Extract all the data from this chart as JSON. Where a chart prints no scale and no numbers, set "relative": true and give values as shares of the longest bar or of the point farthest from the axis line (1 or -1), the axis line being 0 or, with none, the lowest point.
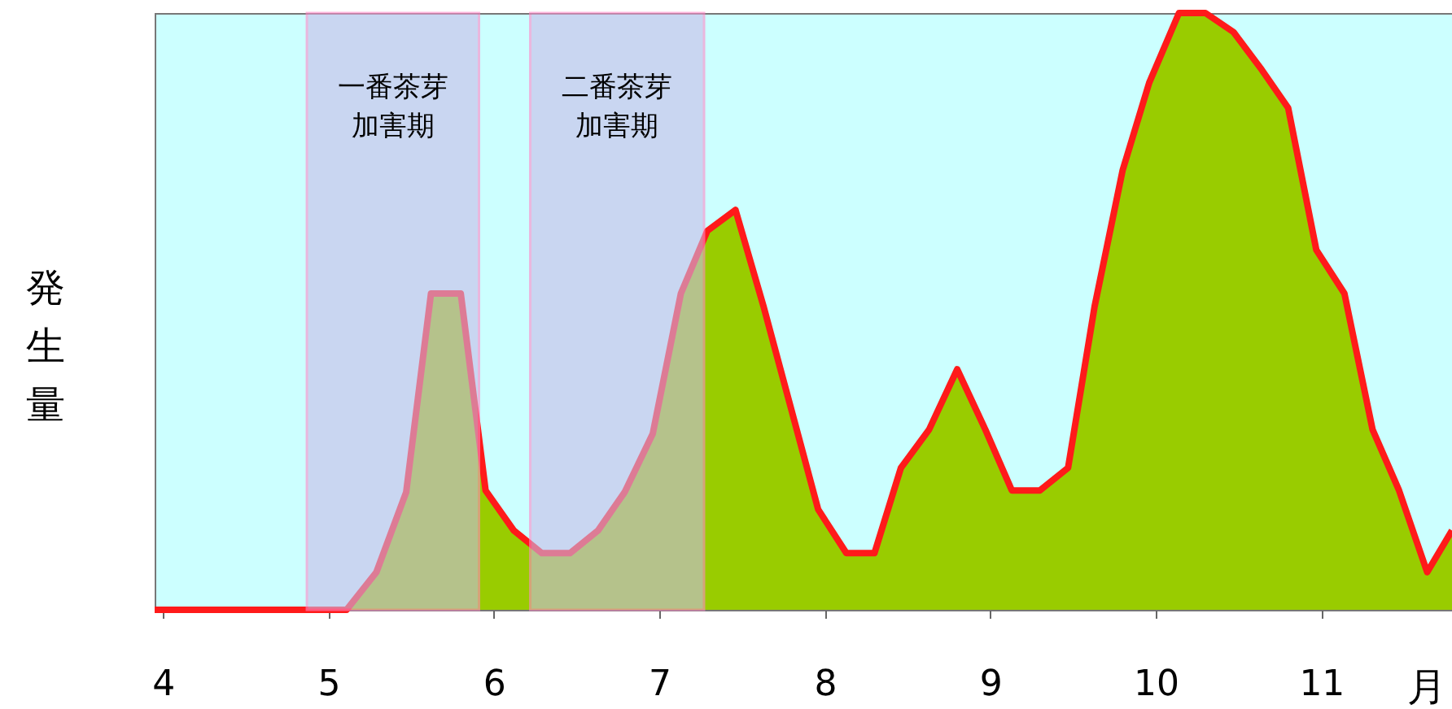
{
  "chart_data": {
    "type": "area",
    "relative": true,
    "xlabel": "月",
    "ylabel": "発生量",
    "xlim": [
      3.95,
      11.79
    ],
    "xticks": [
      4,
      5,
      6,
      7,
      8,
      9,
      10,
      11
    ],
    "x": [
      3.95,
      5.11,
      5.29,
      5.47,
      5.62,
      5.8,
      5.95,
      6.12,
      6.29,
      6.46,
      6.63,
      6.79,
      6.96,
      7.13,
      7.29,
      7.46,
      7.63,
      7.8,
      7.96,
      8.13,
      8.3,
      8.46,
      8.63,
      8.8,
      8.97,
      9.13,
      9.3,
      9.47,
      9.63,
      9.8,
      9.96,
      10.14,
      10.3,
      10.47,
      10.64,
      10.8,
      10.97,
      11.14,
      11.31,
      11.47,
      11.64,
      11.79
    ],
    "series": [
      {
        "color": "#99cc00",
        "values": [
          0,
          0,
          0.063,
          0.197,
          0.53,
          0.53,
          0.2,
          0.133,
          0.095,
          0.095,
          0.133,
          0.197,
          0.295,
          0.53,
          0.635,
          0.67,
          0.508,
          0.333,
          0.168,
          0.095,
          0.095,
          0.238,
          0.302,
          0.403,
          0.302,
          0.2,
          0.2,
          0.238,
          0.508,
          0.737,
          0.883,
          1,
          1,
          0.968,
          0.905,
          0.841,
          0.603,
          0.53,
          0.302,
          0.2,
          0.063,
          0.133
        ]
      }
    ],
    "bands": [
      {
        "axis": "x",
        "from": 4.87,
        "to": 5.91,
        "label": "一番茶芽加害期",
        "color": "#c8bce8"
      },
      {
        "axis": "x",
        "from": 6.22,
        "to": 7.27,
        "label": "二番茶芽加害期",
        "color": "#c8bce8"
      }
    ]
  }
}
